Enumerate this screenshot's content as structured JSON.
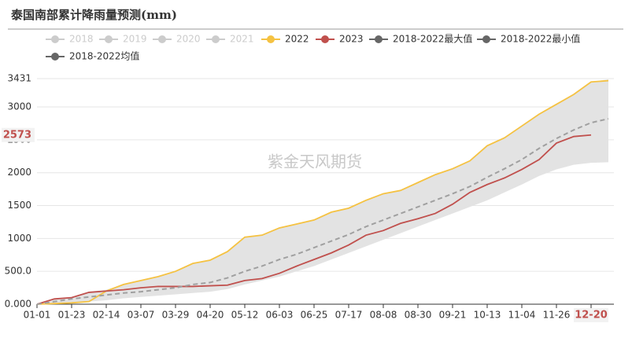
{
  "chart_data": {
    "type": "line",
    "title": "泰国南部累计降雨量预测(mm)",
    "watermark": "紫金天风期货",
    "legend_hidden": [
      "2018",
      "2019",
      "2020",
      "2021"
    ],
    "categories": [
      "01-01",
      null,
      "01-23",
      null,
      "02-14",
      null,
      "03-07",
      null,
      "03-29",
      null,
      "04-20",
      null,
      "05-12",
      null,
      "06-03",
      null,
      "06-25",
      null,
      "07-17",
      null,
      "08-08",
      null,
      "08-30",
      null,
      "09-21",
      null,
      "10-13",
      null,
      "11-04",
      null,
      "11-26",
      null,
      "12-20",
      null
    ],
    "highlight_category": 32,
    "band_color": "#e3e3e3",
    "series": [
      {
        "name": "2022",
        "color": "#f5c242",
        "values": [
          0,
          10,
          20,
          40,
          200,
          300,
          360,
          420,
          500,
          620,
          670,
          800,
          1020,
          1050,
          1160,
          1220,
          1280,
          1400,
          1460,
          1580,
          1680,
          1730,
          1850,
          1970,
          2060,
          2180,
          2410,
          2530,
          2710,
          2890,
          3040,
          3190,
          3380,
          3400
        ]
      },
      {
        "name": "2023",
        "color": "#c0504d",
        "values": [
          0,
          80,
          100,
          180,
          200,
          220,
          250,
          270,
          270,
          270,
          280,
          290,
          360,
          390,
          470,
          580,
          680,
          780,
          900,
          1050,
          1120,
          1230,
          1300,
          1380,
          1520,
          1700,
          1820,
          1920,
          2050,
          2200,
          2450,
          2550,
          2573,
          null
        ]
      },
      {
        "name": "2018-2022最大值",
        "color": "#666666",
        "band": "upper",
        "values": [
          0,
          80,
          110,
          190,
          220,
          300,
          360,
          420,
          500,
          620,
          680,
          800,
          1020,
          1060,
          1160,
          1220,
          1290,
          1400,
          1470,
          1580,
          1680,
          1740,
          1850,
          1970,
          2060,
          2180,
          2410,
          2540,
          2710,
          2890,
          3040,
          3190,
          3380,
          3420
        ]
      },
      {
        "name": "2018-2022最小值",
        "color": "#666666",
        "band": "lower",
        "values": [
          0,
          10,
          20,
          40,
          60,
          90,
          110,
          130,
          150,
          170,
          190,
          230,
          300,
          360,
          420,
          500,
          580,
          680,
          780,
          880,
          980,
          1080,
          1180,
          1280,
          1380,
          1480,
          1580,
          1700,
          1820,
          1950,
          2050,
          2120,
          2150,
          2160
        ]
      },
      {
        "name": "2018-2022均值",
        "color": "#666666",
        "line_color": "#a0a0a0",
        "dashed": true,
        "values": [
          0,
          40,
          80,
          110,
          140,
          170,
          190,
          220,
          250,
          300,
          330,
          400,
          500,
          580,
          680,
          760,
          860,
          960,
          1060,
          1180,
          1280,
          1380,
          1480,
          1580,
          1680,
          1790,
          1930,
          2060,
          2200,
          2370,
          2520,
          2650,
          2760,
          2820
        ]
      }
    ],
    "highlight_value": {
      "series": 1,
      "index": 32
    },
    "ylim": [
      0,
      3431
    ],
    "yticks": [
      {
        "value": 0,
        "label": "0.000"
      },
      {
        "value": 500,
        "label": "500.0"
      },
      1000,
      1500,
      2000,
      2500,
      3000,
      3431
    ],
    "grid": true
  }
}
